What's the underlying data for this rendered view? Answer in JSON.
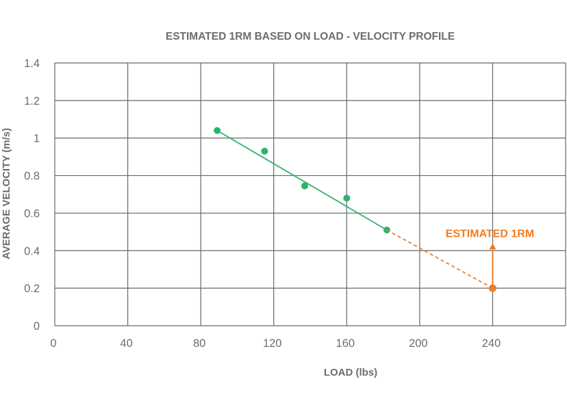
{
  "chart_data": {
    "type": "scatter",
    "title": "ESTIMATED 1RM BASED ON LOAD - VELOCITY PROFILE",
    "xlabel": "LOAD (lbs)",
    "ylabel": "AVERAGE VELOCITY (m/s)",
    "xlim": [
      0,
      280
    ],
    "ylim": [
      0,
      1.4
    ],
    "x_ticks": [
      0,
      40,
      80,
      120,
      160,
      200,
      240
    ],
    "x_tick_labels": [
      "0",
      "40",
      "80",
      "120",
      "160",
      "200",
      "240"
    ],
    "y_ticks": [
      0,
      0.2,
      0.4,
      0.6,
      0.8,
      1,
      1.2,
      1.4
    ],
    "y_tick_labels": [
      "0",
      "0.2",
      "0.4",
      "0.6",
      "0.8",
      "1",
      "1.2",
      "1.4"
    ],
    "grid": true,
    "series": [
      {
        "color": "#2eb36c",
        "points": [
          {
            "x": 89,
            "y": 1.04
          },
          {
            "x": 115,
            "y": 0.93
          },
          {
            "x": 137,
            "y": 0.745
          },
          {
            "x": 160,
            "y": 0.68
          },
          {
            "x": 182,
            "y": 0.51
          }
        ],
        "trendline": {
          "from": [
            89,
            1.04
          ],
          "to": [
            182,
            0.51
          ]
        }
      }
    ],
    "extrapolation": {
      "color": "#f07c22",
      "from": [
        182,
        0.51
      ],
      "to": [
        240,
        0.2
      ],
      "style": "dashed",
      "point": {
        "x": 240,
        "y": 0.2
      },
      "annotation": "ESTIMATED 1RM",
      "arrow_to_y": 0.44
    },
    "colors": {
      "title": "#6d6d6d",
      "axis_text": "#6d6d6d",
      "grid": "#666666"
    }
  }
}
